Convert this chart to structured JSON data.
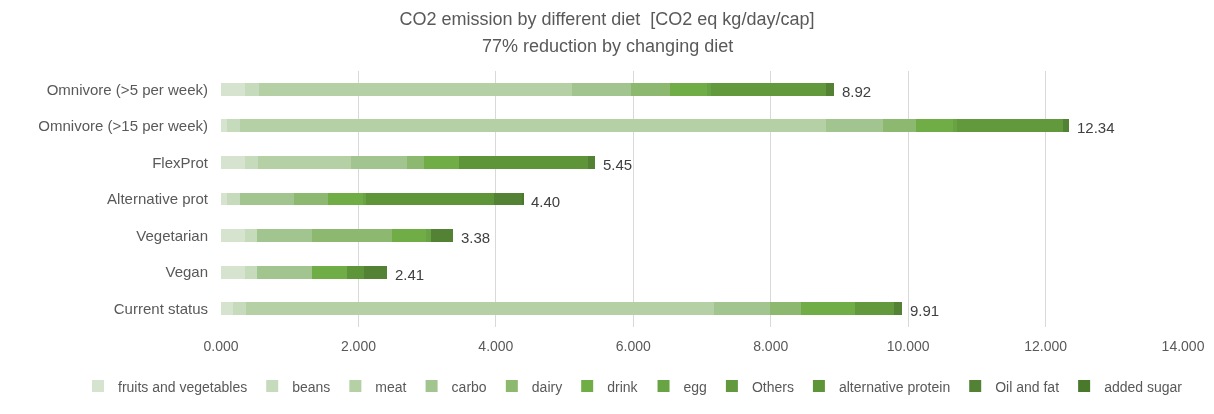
{
  "chart_data": {
    "type": "bar",
    "orientation": "horizontal",
    "stacked": true,
    "title": "CO2 emission by different diet  [CO2 eq kg/day/cap]",
    "subtitle": "77% reduction by changing diet",
    "categories": [
      "Omnivore (>5 per week)",
      "Omnivore (>15 per week)",
      "FlexProt",
      "Alternative prot",
      "Vegetarian",
      "Vegan",
      "Current status"
    ],
    "series": [
      {
        "name": "fruits and vegetables",
        "color": "#d5e3cf",
        "values": [
          0.35,
          0.09,
          0.35,
          0.09,
          0.35,
          0.35,
          0.18
        ]
      },
      {
        "name": "beans",
        "color": "#c5dbbb",
        "values": [
          0.2,
          0.19,
          0.19,
          0.19,
          0.17,
          0.17,
          0.18
        ]
      },
      {
        "name": "meat",
        "color": "#b5d0a5",
        "values": [
          4.56,
          8.52,
          1.35,
          null,
          null,
          null,
          6.81
        ]
      },
      {
        "name": "carbo",
        "color": "#a2c590",
        "values": [
          0.85,
          0.84,
          0.82,
          0.78,
          0.8,
          0.8,
          0.82
        ]
      },
      {
        "name": "dairy",
        "color": "#8cb96f",
        "values": [
          0.57,
          0.47,
          0.25,
          0.49,
          1.17,
          null,
          0.45
        ]
      },
      {
        "name": "drink",
        "color": "#70ad47",
        "values": [
          0.54,
          0.54,
          0.5,
          0.52,
          0.5,
          0.52,
          0.78
        ]
      },
      {
        "name": "egg",
        "color": "#68a443",
        "values": [
          0.06,
          0.06,
          null,
          0.04,
          0.07,
          null,
          null
        ]
      },
      {
        "name": "Others",
        "color": "#62993c",
        "values": [
          1.68,
          1.54,
          null,
          null,
          null,
          null,
          0.58
        ]
      },
      {
        "name": "alternative protein",
        "color": "#5e9539",
        "values": [
          null,
          null,
          1.88,
          1.86,
          null,
          0.24,
          null
        ]
      },
      {
        "name": "Oil and fat",
        "color": "#548235",
        "values": [
          0.11,
          0.09,
          0.11,
          0.42,
          0.32,
          0.33,
          0.11
        ]
      },
      {
        "name": "added sugar",
        "color": "#4a792c",
        "values": [
          null,
          null,
          null,
          0.01,
          null,
          null,
          null
        ]
      }
    ],
    "totals": [
      "8.92",
      "12.34",
      "5.45",
      "4.40",
      "3.38",
      "2.41",
      "9.91"
    ],
    "xlim": [
      0,
      14
    ],
    "xticks": [
      {
        "value": 0,
        "label": "0.000"
      },
      {
        "value": 2,
        "label": "2.000"
      },
      {
        "value": 4,
        "label": "4.000"
      },
      {
        "value": 6,
        "label": "6.000"
      },
      {
        "value": 8,
        "label": "8.000"
      },
      {
        "value": 10,
        "label": "10.000"
      },
      {
        "value": 12,
        "label": "12.000"
      },
      {
        "value": 14,
        "label": "14.000"
      }
    ],
    "grid": "x",
    "legend": "bottom"
  }
}
